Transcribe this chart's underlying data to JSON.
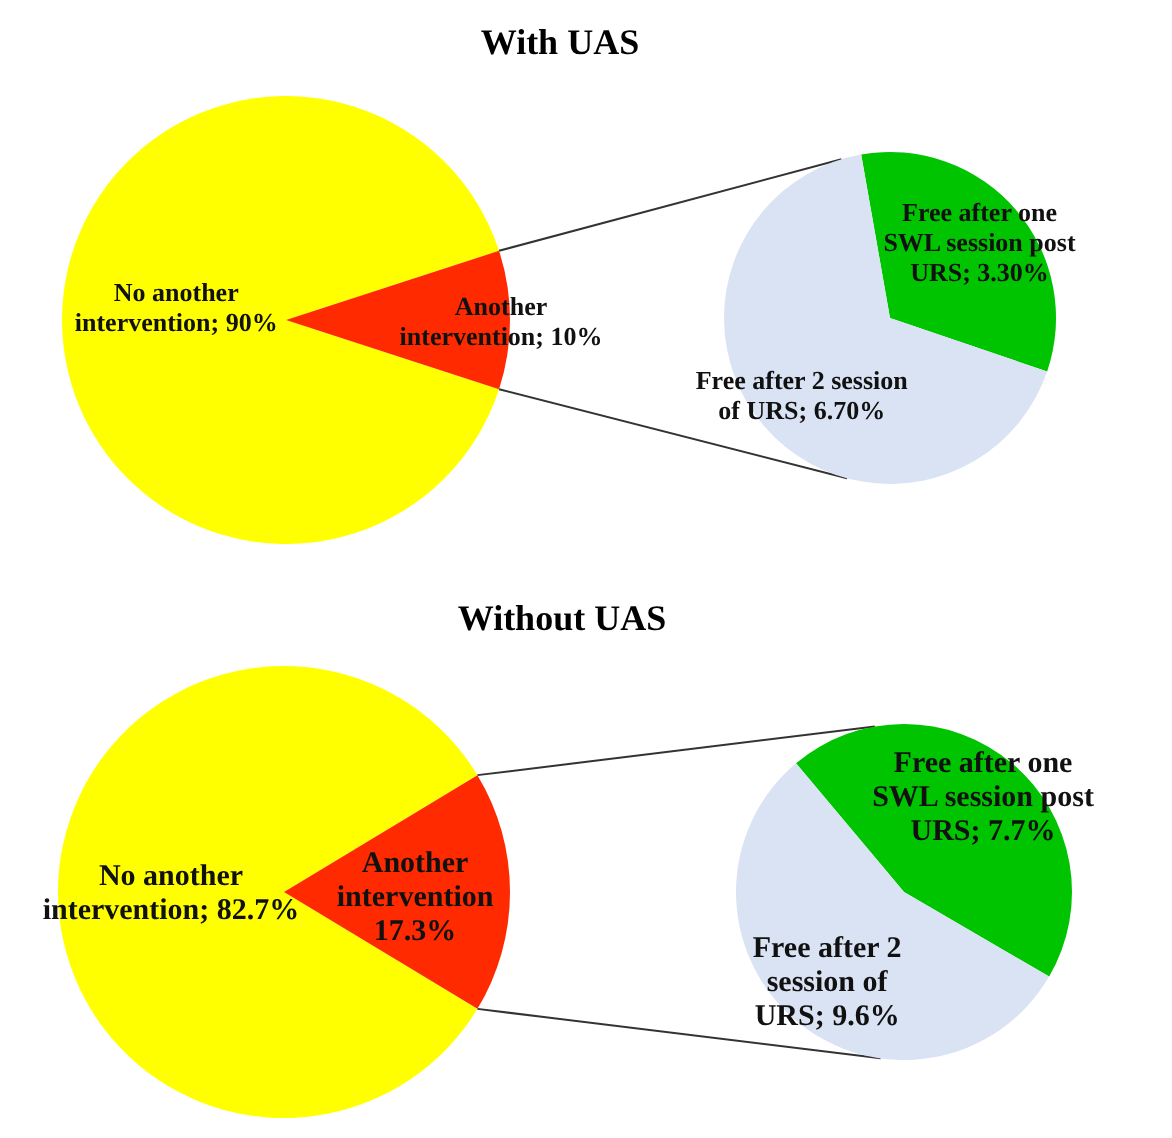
{
  "chart_data": [
    {
      "type": "pie",
      "title": "With UAS",
      "categories": [
        "No another intervention",
        "Another intervention"
      ],
      "values": [
        90,
        10
      ],
      "colors": [
        "#ffff00",
        "#ff2a00"
      ],
      "value_labels": [
        "90%",
        "10%"
      ]
    },
    {
      "type": "pie",
      "categories": [
        "Free after one SWL session post URS",
        "Free after 2 session of URS"
      ],
      "values": [
        3.3,
        6.7
      ],
      "colors": [
        "#00c400",
        "#dae3f3"
      ],
      "value_labels": [
        "3.30%",
        "6.70%"
      ]
    },
    {
      "type": "pie",
      "title": "Without UAS",
      "categories": [
        "No another intervention",
        "Another intervention"
      ],
      "values": [
        82.7,
        17.3
      ],
      "colors": [
        "#ffff00",
        "#ff2a00"
      ],
      "value_labels": [
        "82.7%",
        "17.3%"
      ]
    },
    {
      "type": "pie",
      "categories": [
        "Free after one SWL session post URS",
        "Free after 2 session of URS"
      ],
      "values": [
        7.7,
        9.6
      ],
      "colors": [
        "#00c400",
        "#dae3f3"
      ],
      "value_labels": [
        "7.7%",
        "9.6%"
      ]
    }
  ]
}
